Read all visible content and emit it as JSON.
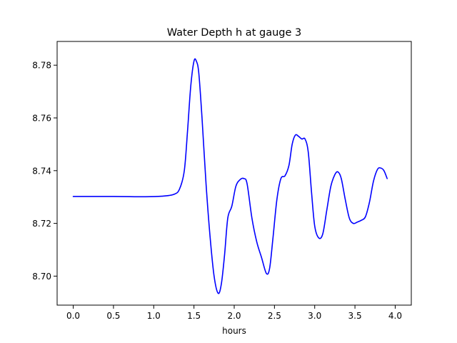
{
  "chart_data": {
    "type": "line",
    "title": "Water Depth h at gauge 3",
    "xlabel": "hours",
    "ylabel": "",
    "xlim": [
      -0.2,
      4.2
    ],
    "ylim": [
      8.689,
      8.789
    ],
    "xticks": [
      {
        "value": 0.0,
        "label": "0.0"
      },
      {
        "value": 0.5,
        "label": "0.5"
      },
      {
        "value": 1.0,
        "label": "1.0"
      },
      {
        "value": 1.5,
        "label": "1.5"
      },
      {
        "value": 2.0,
        "label": "2.0"
      },
      {
        "value": 2.5,
        "label": "2.5"
      },
      {
        "value": 3.0,
        "label": "3.0"
      },
      {
        "value": 3.5,
        "label": "3.5"
      },
      {
        "value": 4.0,
        "label": "4.0"
      }
    ],
    "yticks": [
      {
        "value": 8.7,
        "label": "8.70"
      },
      {
        "value": 8.72,
        "label": "8.72"
      },
      {
        "value": 8.74,
        "label": "8.74"
      },
      {
        "value": 8.76,
        "label": "8.76"
      },
      {
        "value": 8.78,
        "label": "8.78"
      }
    ],
    "grid": false,
    "legend": "none",
    "series": [
      {
        "color": "#0000ff",
        "points": [
          [
            0.0,
            8.7302
          ],
          [
            0.5,
            8.7302
          ],
          [
            0.9,
            8.7301
          ],
          [
            1.1,
            8.7303
          ],
          [
            1.25,
            8.731
          ],
          [
            1.32,
            8.733
          ],
          [
            1.38,
            8.74
          ],
          [
            1.42,
            8.755
          ],
          [
            1.46,
            8.772
          ],
          [
            1.5,
            8.7815
          ],
          [
            1.53,
            8.7815
          ],
          [
            1.56,
            8.777
          ],
          [
            1.6,
            8.76
          ],
          [
            1.65,
            8.735
          ],
          [
            1.7,
            8.715
          ],
          [
            1.75,
            8.7
          ],
          [
            1.8,
            8.6935
          ],
          [
            1.84,
            8.697
          ],
          [
            1.88,
            8.708
          ],
          [
            1.92,
            8.722
          ],
          [
            1.97,
            8.7265
          ],
          [
            2.02,
            8.734
          ],
          [
            2.07,
            8.7365
          ],
          [
            2.12,
            8.737
          ],
          [
            2.16,
            8.735
          ],
          [
            2.22,
            8.722
          ],
          [
            2.28,
            8.713
          ],
          [
            2.34,
            8.707
          ],
          [
            2.4,
            8.701
          ],
          [
            2.44,
            8.703
          ],
          [
            2.48,
            8.714
          ],
          [
            2.53,
            8.729
          ],
          [
            2.58,
            8.737
          ],
          [
            2.63,
            8.738
          ],
          [
            2.68,
            8.742
          ],
          [
            2.72,
            8.75
          ],
          [
            2.76,
            8.7535
          ],
          [
            2.8,
            8.753
          ],
          [
            2.84,
            8.752
          ],
          [
            2.88,
            8.752
          ],
          [
            2.92,
            8.747
          ],
          [
            2.96,
            8.732
          ],
          [
            3.0,
            8.719
          ],
          [
            3.05,
            8.7145
          ],
          [
            3.1,
            8.716
          ],
          [
            3.15,
            8.725
          ],
          [
            3.2,
            8.734
          ],
          [
            3.25,
            8.7385
          ],
          [
            3.29,
            8.7395
          ],
          [
            3.33,
            8.737
          ],
          [
            3.38,
            8.729
          ],
          [
            3.43,
            8.722
          ],
          [
            3.48,
            8.72
          ],
          [
            3.53,
            8.7205
          ],
          [
            3.58,
            8.7212
          ],
          [
            3.63,
            8.7225
          ],
          [
            3.68,
            8.728
          ],
          [
            3.73,
            8.736
          ],
          [
            3.78,
            8.7405
          ],
          [
            3.82,
            8.741
          ],
          [
            3.86,
            8.74
          ],
          [
            3.9,
            8.737
          ]
        ]
      }
    ]
  }
}
